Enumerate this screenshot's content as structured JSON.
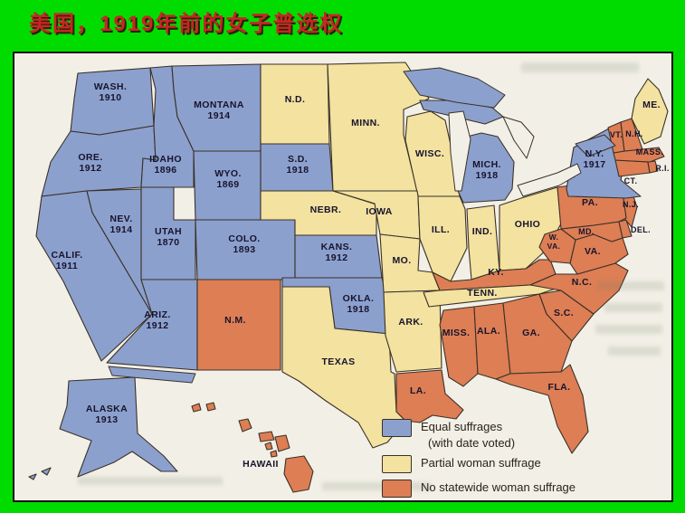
{
  "window": {
    "background_color": "#00DC00"
  },
  "title": {
    "text": "美国，1919年前的女子普选权",
    "color": "#C62626"
  },
  "map": {
    "paper_color": "#F2EFE6",
    "border_color": "#3A3126",
    "label_color": "#17142C",
    "lake_color": "#8CA0CE",
    "categories": {
      "equal": "#8CA0CE",
      "partial": "#F3E2A0",
      "none": "#DD7E55"
    },
    "states": [
      {
        "id": "WASH",
        "lines": [
          "WASH.",
          "1910"
        ],
        "category": "equal"
      },
      {
        "id": "ORE",
        "lines": [
          "ORE.",
          "1912"
        ],
        "category": "equal"
      },
      {
        "id": "CALIF",
        "lines": [
          "CALIF.",
          "1911"
        ],
        "category": "equal"
      },
      {
        "id": "NEV",
        "lines": [
          "NEV.",
          "1914"
        ],
        "category": "equal"
      },
      {
        "id": "IDAHO",
        "lines": [
          "IDAHO",
          "1896"
        ],
        "category": "equal"
      },
      {
        "id": "MONTANA",
        "lines": [
          "MONTANA",
          "1914"
        ],
        "category": "equal"
      },
      {
        "id": "WYO",
        "lines": [
          "WYO.",
          "1869"
        ],
        "category": "equal"
      },
      {
        "id": "UTAH",
        "lines": [
          "UTAH",
          "1870"
        ],
        "category": "equal"
      },
      {
        "id": "ARIZ",
        "lines": [
          "ARIZ.",
          "1912"
        ],
        "category": "equal"
      },
      {
        "id": "COLO",
        "lines": [
          "COLO.",
          "1893"
        ],
        "category": "equal"
      },
      {
        "id": "NM",
        "lines": [
          "N.M."
        ],
        "category": "none"
      },
      {
        "id": "ND",
        "lines": [
          "N.D."
        ],
        "category": "partial"
      },
      {
        "id": "SD",
        "lines": [
          "S.D.",
          "1918"
        ],
        "category": "equal"
      },
      {
        "id": "NEBR",
        "lines": [
          "NEBR."
        ],
        "category": "partial"
      },
      {
        "id": "KANS",
        "lines": [
          "KANS.",
          "1912"
        ],
        "category": "equal"
      },
      {
        "id": "OKLA",
        "lines": [
          "OKLA.",
          "1918"
        ],
        "category": "equal"
      },
      {
        "id": "TEXAS",
        "lines": [
          "TEXAS"
        ],
        "category": "partial"
      },
      {
        "id": "MINN",
        "lines": [
          "MINN."
        ],
        "category": "partial"
      },
      {
        "id": "WISC",
        "lines": [
          "WISC."
        ],
        "category": "partial"
      },
      {
        "id": "IOWA",
        "lines": [
          "IOWA"
        ],
        "category": "partial"
      },
      {
        "id": "MO",
        "lines": [
          "MO."
        ],
        "category": "partial"
      },
      {
        "id": "ARK",
        "lines": [
          "ARK."
        ],
        "category": "partial"
      },
      {
        "id": "LA",
        "lines": [
          "LA."
        ],
        "category": "none"
      },
      {
        "id": "ILL",
        "lines": [
          "ILL."
        ],
        "category": "partial"
      },
      {
        "id": "IND",
        "lines": [
          "IND."
        ],
        "category": "partial"
      },
      {
        "id": "OHIO",
        "lines": [
          "OHIO"
        ],
        "category": "partial"
      },
      {
        "id": "MICH",
        "lines": [
          "MICH.",
          "1918"
        ],
        "category": "equal"
      },
      {
        "id": "KY",
        "lines": [
          "KY."
        ],
        "category": "none"
      },
      {
        "id": "TENN",
        "lines": [
          "TENN."
        ],
        "category": "partial"
      },
      {
        "id": "MISS",
        "lines": [
          "MISS."
        ],
        "category": "none"
      },
      {
        "id": "ALA",
        "lines": [
          "ALA."
        ],
        "category": "none"
      },
      {
        "id": "GA",
        "lines": [
          "GA."
        ],
        "category": "none"
      },
      {
        "id": "FLA",
        "lines": [
          "FLA."
        ],
        "category": "none"
      },
      {
        "id": "SC",
        "lines": [
          "S.C."
        ],
        "category": "none"
      },
      {
        "id": "NC",
        "lines": [
          "N.C."
        ],
        "category": "none"
      },
      {
        "id": "VA",
        "lines": [
          "VA."
        ],
        "category": "none"
      },
      {
        "id": "WVA",
        "lines": [
          "W.",
          "VA."
        ],
        "category": "none"
      },
      {
        "id": "MD",
        "lines": [
          "MD."
        ],
        "category": "none"
      },
      {
        "id": "DEL",
        "lines": [
          "DEL."
        ],
        "category": "none"
      },
      {
        "id": "NJ",
        "lines": [
          "N.J."
        ],
        "category": "none"
      },
      {
        "id": "PA",
        "lines": [
          "PA."
        ],
        "category": "none"
      },
      {
        "id": "NY",
        "lines": [
          "N.Y.",
          "1917"
        ],
        "category": "equal"
      },
      {
        "id": "CT",
        "lines": [
          "CT."
        ],
        "category": "none"
      },
      {
        "id": "RI",
        "lines": [
          "R.I."
        ],
        "category": "none"
      },
      {
        "id": "MASS",
        "lines": [
          "MASS."
        ],
        "category": "none"
      },
      {
        "id": "VT",
        "lines": [
          "VT."
        ],
        "category": "none"
      },
      {
        "id": "NH",
        "lines": [
          "N.H."
        ],
        "category": "none"
      },
      {
        "id": "ME",
        "lines": [
          "ME."
        ],
        "category": "partial"
      },
      {
        "id": "ALASKA",
        "lines": [
          "ALASKA",
          "1913"
        ],
        "category": "equal"
      },
      {
        "id": "HAWAII",
        "lines": [
          "HAWAII"
        ],
        "category": "none"
      }
    ]
  },
  "legend": {
    "items": [
      {
        "category": "equal",
        "label": "Equal suffrages",
        "sublabel": "(with date voted)"
      },
      {
        "category": "partial",
        "label": "Partial woman suffrage"
      },
      {
        "category": "none",
        "label": "No statewide woman suffrage"
      }
    ]
  }
}
